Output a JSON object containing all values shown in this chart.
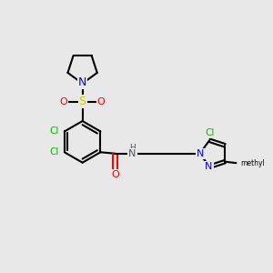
{
  "bg_color": "#e8e8e8",
  "bond_lw": 1.5,
  "figsize": [
    3.0,
    3.0
  ],
  "dpi": 100,
  "xlim": [
    0,
    10
  ],
  "ylim": [
    0,
    10
  ]
}
